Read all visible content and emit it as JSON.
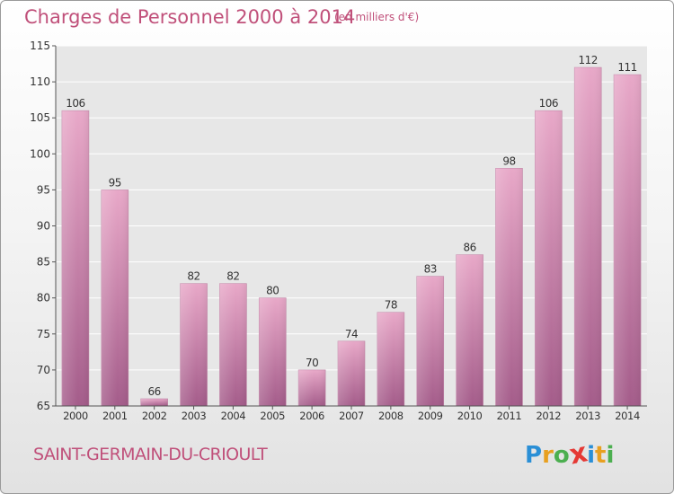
{
  "header": {
    "title": "Charges de Personnel 2000 à 2014",
    "subtitle": "(en milliers d'€)"
  },
  "footer": {
    "commune": "SAINT-GERMAIN-DU-CRIOULT",
    "logo_text": "Proxiti",
    "logo_letters": [
      {
        "ch": "P",
        "color": "#2a8fd6"
      },
      {
        "ch": "r",
        "color": "#e8a020"
      },
      {
        "ch": "o",
        "color": "#4caf50"
      },
      {
        "ch": "x",
        "color": "#e53935"
      },
      {
        "ch": "i",
        "color": "#2a8fd6"
      },
      {
        "ch": "t",
        "color": "#e8a020"
      },
      {
        "ch": "i",
        "color": "#4caf50"
      }
    ]
  },
  "colors": {
    "bar_top": "#e8a8c8",
    "bar_bottom": "#a45c8a",
    "accent_text": "#c0507a"
  },
  "chart_data": {
    "type": "bar",
    "title": "Charges de Personnel 2000 à 2014",
    "subtitle": "(en milliers d'€)",
    "categories": [
      "2000",
      "2001",
      "2002",
      "2003",
      "2004",
      "2005",
      "2006",
      "2007",
      "2008",
      "2009",
      "2010",
      "2011",
      "2012",
      "2013",
      "2014"
    ],
    "values": [
      106,
      95,
      66,
      82,
      82,
      80,
      70,
      74,
      78,
      83,
      86,
      98,
      106,
      112,
      111
    ],
    "ylim": [
      65,
      115
    ],
    "yticks": [
      65,
      70,
      75,
      80,
      85,
      90,
      95,
      100,
      105,
      110,
      115
    ],
    "grid": true,
    "xlabel": "",
    "ylabel": ""
  }
}
